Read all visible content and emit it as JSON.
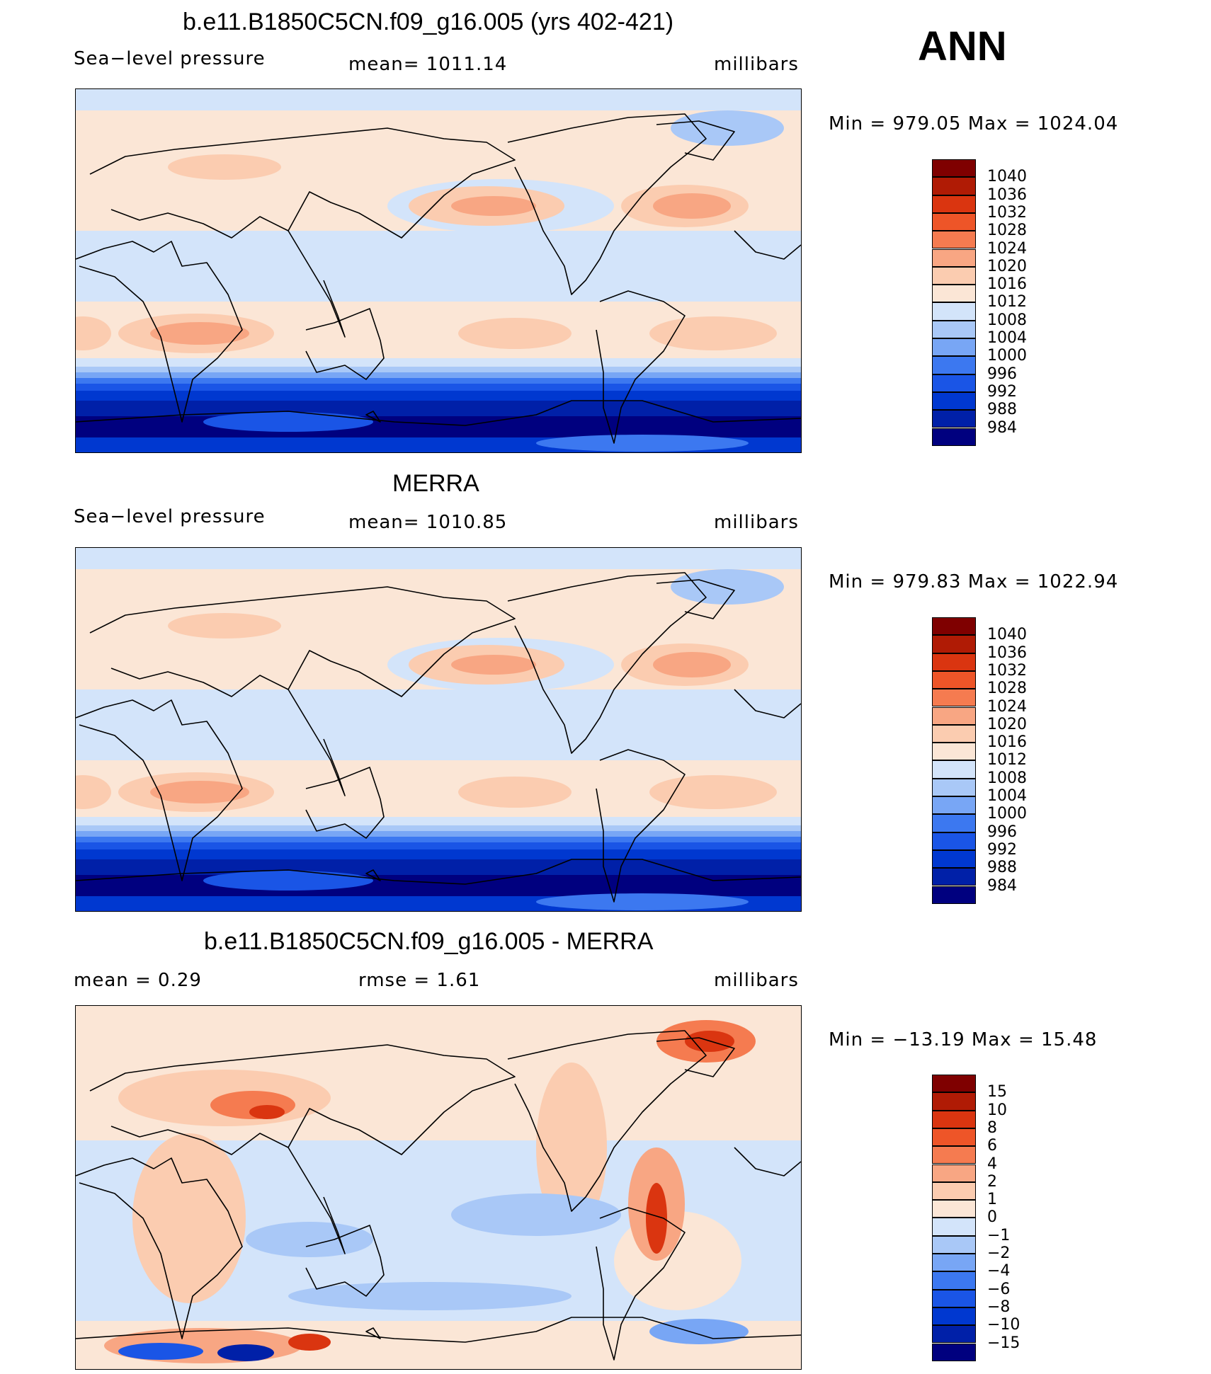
{
  "season": "ANN",
  "units": "millibars",
  "colors": {
    "abs_levels": [
      "#00007f",
      "#0020a8",
      "#0038d0",
      "#1a55e6",
      "#3c78f0",
      "#78a6f5",
      "#a9c8f7",
      "#d3e4fa",
      "#fbe6d6",
      "#fbccb0",
      "#f8a683",
      "#f57b50",
      "#ee5528",
      "#da3510",
      "#b01b05",
      "#7f0000"
    ],
    "diff_levels": [
      "#00007f",
      "#0020a8",
      "#0038d0",
      "#1a55e6",
      "#3c78f0",
      "#78a6f5",
      "#a9c8f7",
      "#d3e4fa",
      "#fbe6d6",
      "#fbccb0",
      "#f8a683",
      "#f57b50",
      "#ee5528",
      "#da3510",
      "#b01b05",
      "#7f0000"
    ]
  },
  "panels": [
    {
      "title": "b.e11.B1850C5CN.f09_g16.005 (yrs 402-421)",
      "left_label": "Sea−level pressure",
      "center_label": "mean=  1011.14",
      "units": "millibars",
      "minmax": "Min  =  979.05  Max  =  1024.04",
      "colorbar_labels": [
        "1040",
        "1036",
        "1032",
        "1028",
        "1024",
        "1020",
        "1016",
        "1012",
        "1008",
        "1004",
        "1000",
        "996",
        "992",
        "988",
        "984"
      ],
      "kind": "abs"
    },
    {
      "title": "MERRA",
      "left_label": "Sea−level pressure",
      "center_label": "mean=  1010.85",
      "units": "millibars",
      "minmax": "Min  =  979.83  Max  =  1022.94",
      "colorbar_labels": [
        "1040",
        "1036",
        "1032",
        "1028",
        "1024",
        "1020",
        "1016",
        "1012",
        "1008",
        "1004",
        "1000",
        "996",
        "992",
        "988",
        "984"
      ],
      "kind": "abs"
    },
    {
      "title": "b.e11.B1850C5CN.f09_g16.005 - MERRA",
      "left_label": "mean  =      0.29",
      "center_label": "rmse  =      1.61",
      "units": "millibars",
      "minmax": "Min  =  −13.19  Max  =     15.48",
      "colorbar_labels": [
        "15",
        "10",
        "8",
        "6",
        "4",
        "2",
        "1",
        "0",
        "−1",
        "−2",
        "−4",
        "−6",
        "−8",
        "−10",
        "−15"
      ],
      "kind": "diff"
    }
  ]
}
